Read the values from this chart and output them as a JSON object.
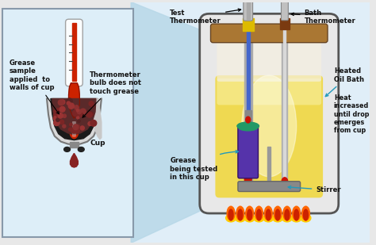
{
  "bg_color": "#e8e8e8",
  "left_panel_bg": "#ddeef8",
  "left_panel_border": "#aabbcc",
  "labels": {
    "grease_sample": "Grease\nsample\napplied  to\nwalls of cup",
    "thermo_bulb": "Thermometer\nbulb does not\ntouch grease",
    "cup": "Cup",
    "test_thermo": "Test\nThermometer",
    "bath_thermo": "Bath\nThermometer",
    "heated_oil": "Heated\nOil Bath",
    "heat_increased": "Heat\nincreased\nuntil drop\nemerges\nfrom cup",
    "stirrer": "Stirrer",
    "grease_tested": "Grease\nbeing tested\nin this cup"
  },
  "colors": {
    "thermo_red": "#cc2200",
    "thermo_outline": "#999999",
    "cup_dark": "#1a1a1a",
    "cup_gray": "#888888",
    "cup_lightgray": "#bbbbbb",
    "cup_silver": "#d8d8d8",
    "grease_dark": "#5a2a2a",
    "drop": "#882222",
    "oil_yellow": "#f0d840",
    "oil_lightyellow": "#f8f0a0",
    "oil_cream": "#fffff0",
    "bath_blue": "#4466cc",
    "bath_thermo_brown": "#7a3a10",
    "flame_red": "#cc2200",
    "flame_orange": "#ff6600",
    "flame_yellow": "#ffcc00",
    "cup_purple": "#5533aa",
    "cup_green": "#229966",
    "connector_gold": "#ccaa00",
    "wood_brown": "#aa7733",
    "arrow_black": "#111111",
    "arrow_blue": "#2299bb",
    "connector_blue": "#b8d8e8"
  },
  "figsize": [
    4.74,
    3.09
  ],
  "dpi": 100
}
